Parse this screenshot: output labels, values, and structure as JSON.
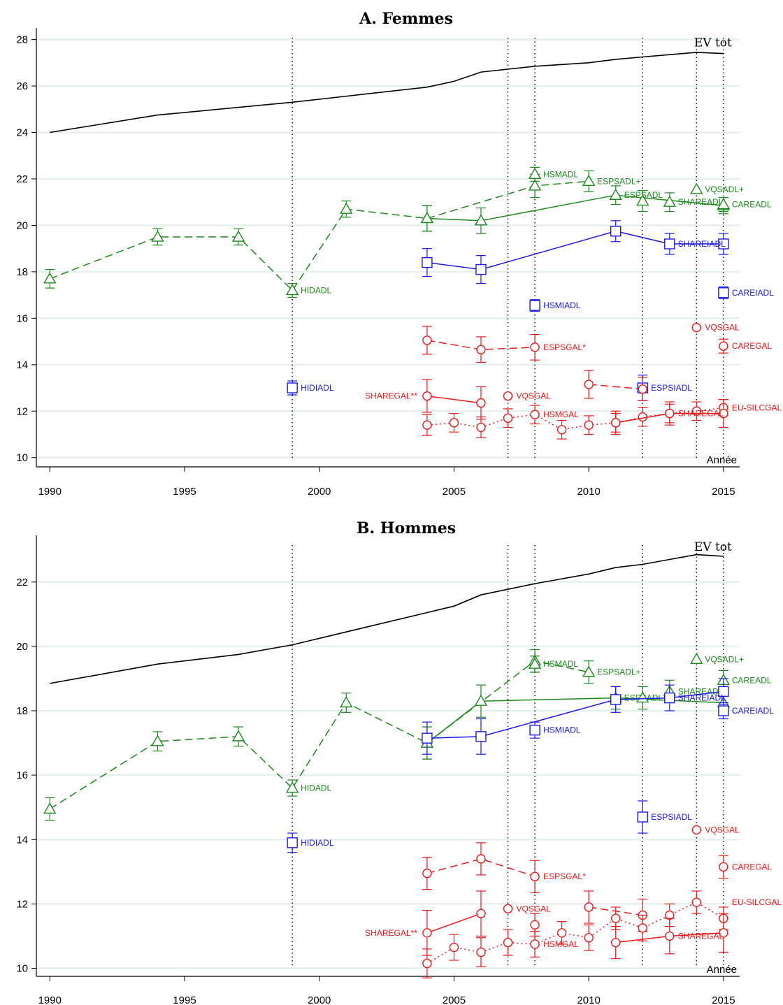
{
  "colors": {
    "green": "#1a8a1a",
    "blue": "#1a1aee",
    "red": "#ee1a1a",
    "black": "#000000",
    "grid": "#e4efef"
  },
  "chart_data": [
    {
      "type": "line",
      "title": "A. Femmes",
      "xlabel": "Année",
      "ylabel": "",
      "xlim": [
        1989.5,
        2015.6
      ],
      "ylim": [
        9.6,
        28.5
      ],
      "xticks": [
        1990,
        1995,
        2000,
        2005,
        2010,
        2015
      ],
      "yticks": [
        10,
        12,
        14,
        16,
        18,
        20,
        22,
        24,
        26,
        28
      ],
      "vlines": [
        1999,
        2007,
        2008,
        2012,
        2014,
        2015
      ],
      "ev_label": "EV tot",
      "ev": {
        "x": [
          1990,
          1994,
          1999,
          2004,
          2005,
          2006,
          2008,
          2010,
          2011,
          2012,
          2013,
          2014,
          2015
        ],
        "y": [
          24.0,
          24.75,
          25.3,
          25.95,
          26.2,
          26.6,
          26.85,
          27.0,
          27.15,
          27.25,
          27.35,
          27.45,
          27.4
        ]
      },
      "series": [
        {
          "name": "HIDADL",
          "color": "green",
          "marker": "triangle",
          "line": "dashed",
          "label_at": 1999,
          "points": [
            [
              1990,
              17.7,
              0.4
            ],
            [
              1994,
              19.5,
              0.35
            ],
            [
              1997,
              19.5,
              0.35
            ],
            [
              1999,
              17.2,
              0.3
            ],
            [
              2001,
              20.7,
              0.35
            ],
            [
              2004,
              20.3,
              0.55
            ],
            [
              2008,
              21.7,
              0.5
            ],
            [
              2010,
              21.9,
              0.45
            ]
          ]
        },
        {
          "name": "HSMADL",
          "color": "green",
          "marker": "triangle",
          "line": "none",
          "label_at": 2008,
          "points": [
            [
              2008,
              22.2,
              0.3
            ]
          ]
        },
        {
          "name": "ESPSADL+",
          "color": "green",
          "marker": "triangle",
          "line": "none",
          "label_at": 2010,
          "points": []
        },
        {
          "name": "ESPSADL",
          "color": "green",
          "marker": "triangle",
          "line": "solid",
          "label_at": 2011,
          "points": [
            [
              2004,
              20.3,
              0.55
            ],
            [
              2006,
              20.2,
              0.55
            ],
            [
              2011,
              21.3,
              0.4
            ],
            [
              2015,
              20.85,
              0.35
            ]
          ]
        },
        {
          "name": "SHAREADL",
          "color": "green",
          "marker": "triangle",
          "line": "none",
          "label_at": 2013,
          "points": [
            [
              2012,
              21.05,
              0.45
            ],
            [
              2013,
              21.0,
              0.4
            ]
          ]
        },
        {
          "name": "VQSADL+",
          "color": "green",
          "marker": "triangle",
          "line": "none",
          "label_at": 2014,
          "points": [
            [
              2014,
              21.55,
              0.1
            ]
          ]
        },
        {
          "name": "CAREADL",
          "color": "green",
          "marker": "triangle",
          "line": "none",
          "label_at": 2015,
          "points": [
            [
              2015,
              20.9,
              0.3
            ]
          ]
        },
        {
          "name": "HIDIADL",
          "color": "blue",
          "marker": "square",
          "line": "none",
          "label_at": 1999,
          "points": [
            [
              1999,
              13.0,
              0.3
            ]
          ]
        },
        {
          "name": "SHAREIADL",
          "color": "blue",
          "marker": "square",
          "line": "solid",
          "label_at": 2013,
          "points": [
            [
              2004,
              18.4,
              0.6
            ],
            [
              2006,
              18.1,
              0.6
            ],
            [
              2011,
              19.75,
              0.45
            ],
            [
              2013,
              19.2,
              0.45
            ],
            [
              2015,
              19.2,
              0.45
            ]
          ]
        },
        {
          "name": "HSMIADL",
          "color": "blue",
          "marker": "square",
          "line": "none",
          "label_at": 2008,
          "points": [
            [
              2008,
              16.55,
              0.25
            ]
          ]
        },
        {
          "name": "CAREIADL",
          "color": "blue",
          "marker": "square",
          "line": "none",
          "label_at": 2015,
          "points": [
            [
              2015,
              17.1,
              0.25
            ]
          ]
        },
        {
          "name": "ESPSIADL",
          "color": "blue",
          "marker": "square",
          "line": "none",
          "label_at": 2012,
          "points": [
            [
              2012,
              13.0,
              0.55
            ]
          ]
        },
        {
          "name": "ESPSGAL*",
          "color": "red",
          "marker": "circle",
          "line": "dashed",
          "label_at": 2008,
          "points": [
            [
              2004,
              15.05,
              0.6
            ],
            [
              2006,
              14.65,
              0.55
            ],
            [
              2008,
              14.75,
              0.55
            ]
          ]
        },
        {
          "name": "ESPSGAL*",
          "color": "red",
          "marker": "circle",
          "line": "dashed",
          "label_at": null,
          "points": [
            [
              2010,
              13.15,
              0.6
            ],
            [
              2012,
              12.95,
              0.5
            ]
          ]
        },
        {
          "name": "VQSGAL",
          "color": "red",
          "marker": "circle",
          "line": "none",
          "label_at": 2014,
          "points": [
            [
              2014,
              15.6,
              0.1
            ]
          ]
        },
        {
          "name": "CAREGAL",
          "color": "red",
          "marker": "circle",
          "line": "none",
          "label_at": 2015,
          "points": [
            [
              2015,
              14.8,
              0.3
            ]
          ]
        },
        {
          "name": "SHAREGAL**",
          "color": "red",
          "marker": "circle",
          "line": "solid",
          "label_at": 2004,
          "label_side": "left",
          "points": [
            [
              2004,
              12.65,
              0.7
            ],
            [
              2006,
              12.35,
              0.7
            ]
          ]
        },
        {
          "name": "VQSGAL",
          "color": "red",
          "marker": "circle",
          "line": "none",
          "label_at": 2007,
          "points": [
            [
              2007,
              12.65,
              0.1
            ]
          ]
        },
        {
          "name": "HSMGAL",
          "color": "red",
          "marker": "circle",
          "line": "dotted",
          "label_at": 2008,
          "points": [
            [
              2004,
              11.4,
              0.45
            ],
            [
              2005,
              11.5,
              0.4
            ],
            [
              2006,
              11.3,
              0.45
            ],
            [
              2007,
              11.7,
              0.4
            ],
            [
              2008,
              11.85,
              0.4
            ],
            [
              2009,
              11.2,
              0.4
            ],
            [
              2010,
              11.4,
              0.4
            ],
            [
              2011,
              11.5,
              0.4
            ],
            [
              2012,
              11.75,
              0.4
            ],
            [
              2013,
              11.9,
              0.4
            ],
            [
              2014,
              12.0,
              0.4
            ],
            [
              2015,
              12.15,
              0.35
            ]
          ]
        },
        {
          "name": "EU-SILCGAL",
          "color": "red",
          "marker": "circle",
          "line": "none",
          "label_at": 2015,
          "points": []
        },
        {
          "name": "SHAREGAL",
          "color": "red",
          "marker": "circle",
          "line": "solid",
          "label_at": 2013,
          "points": [
            [
              2011,
              11.5,
              0.5
            ],
            [
              2013,
              11.9,
              0.5
            ],
            [
              2015,
              11.9,
              0.6
            ]
          ]
        }
      ]
    },
    {
      "type": "line",
      "title": "B. Hommes",
      "xlabel": "Année",
      "ylabel": "",
      "xlim": [
        1989.5,
        2015.6
      ],
      "ylim": [
        9.75,
        23.45
      ],
      "xticks": [
        1990,
        1995,
        2000,
        2005,
        2010,
        2015
      ],
      "yticks": [
        10,
        12,
        14,
        16,
        18,
        20,
        22
      ],
      "vlines": [
        1999,
        2007,
        2008,
        2012,
        2014,
        2015
      ],
      "ev_label": "EV tot",
      "ev": {
        "x": [
          1990,
          1994,
          1997,
          1999,
          2004,
          2005,
          2006,
          2008,
          2010,
          2011,
          2012,
          2013,
          2014,
          2015
        ],
        "y": [
          18.85,
          19.45,
          19.75,
          20.05,
          21.05,
          21.25,
          21.6,
          21.95,
          22.25,
          22.45,
          22.55,
          22.7,
          22.85,
          22.8
        ]
      },
      "series": [
        {
          "name": "HIDADL",
          "color": "green",
          "marker": "triangle",
          "line": "dashed",
          "label_at": 1999,
          "points": [
            [
              1990,
              14.95,
              0.35
            ],
            [
              1994,
              17.05,
              0.3
            ],
            [
              1997,
              17.2,
              0.3
            ],
            [
              1999,
              15.6,
              0.25
            ],
            [
              2001,
              18.25,
              0.3
            ],
            [
              2004,
              17.0,
              0.5
            ],
            [
              2008,
              19.55,
              0.35
            ],
            [
              2010,
              19.2,
              0.35
            ]
          ]
        },
        {
          "name": "HSMADL",
          "color": "green",
          "marker": "triangle",
          "line": "none",
          "label_at": 2008,
          "points": [
            [
              2008,
              19.45,
              0.25
            ]
          ]
        },
        {
          "name": "ESPSADL+",
          "color": "green",
          "marker": "triangle",
          "line": "none",
          "label_at": 2010,
          "points": []
        },
        {
          "name": "ESPSADL",
          "color": "green",
          "marker": "triangle",
          "line": "solid",
          "label_at": 2011,
          "points": [
            [
              2004,
              17.0,
              0.5
            ],
            [
              2006,
              18.3,
              0.5
            ],
            [
              2011,
              18.4,
              0.35
            ],
            [
              2015,
              18.25,
              0.3
            ]
          ]
        },
        {
          "name": "SHAREADL",
          "color": "green",
          "marker": "triangle",
          "line": "none",
          "label_at": 2013,
          "points": [
            [
              2012,
              18.4,
              0.35
            ],
            [
              2013,
              18.6,
              0.35
            ]
          ]
        },
        {
          "name": "VQSADL+",
          "color": "green",
          "marker": "triangle",
          "line": "none",
          "label_at": 2014,
          "points": [
            [
              2014,
              19.6,
              0.1
            ]
          ]
        },
        {
          "name": "CAREADL",
          "color": "green",
          "marker": "triangle",
          "line": "none",
          "label_at": 2015,
          "points": [
            [
              2015,
              18.95,
              0.3
            ]
          ]
        },
        {
          "name": "HIDIADL",
          "color": "blue",
          "marker": "square",
          "line": "none",
          "label_at": 1999,
          "points": [
            [
              1999,
              13.9,
              0.3
            ]
          ]
        },
        {
          "name": "SHAREIADL",
          "color": "blue",
          "marker": "square",
          "line": "solid",
          "label_at": 2013,
          "points": [
            [
              2004,
              17.15,
              0.5
            ],
            [
              2006,
              17.2,
              0.55
            ],
            [
              2011,
              18.35,
              0.4
            ],
            [
              2013,
              18.4,
              0.4
            ],
            [
              2015,
              18.6,
              0.4
            ]
          ]
        },
        {
          "name": "HSMIADL",
          "color": "blue",
          "marker": "square",
          "line": "none",
          "label_at": 2008,
          "points": [
            [
              2008,
              17.4,
              0.25
            ]
          ]
        },
        {
          "name": "CAREIADL",
          "color": "blue",
          "marker": "square",
          "line": "none",
          "label_at": 2015,
          "points": [
            [
              2015,
              18.0,
              0.25
            ]
          ]
        },
        {
          "name": "ESPSIADL",
          "color": "blue",
          "marker": "square",
          "line": "none",
          "label_at": 2012,
          "points": [
            [
              2012,
              14.7,
              0.5
            ]
          ]
        },
        {
          "name": "ESPSGAL*",
          "color": "red",
          "marker": "circle",
          "line": "dashed",
          "label_at": 2008,
          "points": [
            [
              2004,
              12.95,
              0.5
            ],
            [
              2006,
              13.4,
              0.5
            ],
            [
              2008,
              12.85,
              0.5
            ]
          ]
        },
        {
          "name": "ESPSGAL*",
          "color": "red",
          "marker": "circle",
          "line": "dashed",
          "label_at": null,
          "points": [
            [
              2010,
              11.9,
              0.5
            ],
            [
              2012,
              11.65,
              0.5
            ]
          ]
        },
        {
          "name": "VQSGAL",
          "color": "red",
          "marker": "circle",
          "line": "none",
          "label_at": 2014,
          "points": [
            [
              2014,
              14.3,
              0.1
            ]
          ]
        },
        {
          "name": "CAREGAL",
          "color": "red",
          "marker": "circle",
          "line": "none",
          "label_at": 2015,
          "points": [
            [
              2015,
              13.15,
              0.35
            ]
          ]
        },
        {
          "name": "SHAREGAL**",
          "color": "red",
          "marker": "circle",
          "line": "solid",
          "label_at": 2004,
          "label_side": "left",
          "points": [
            [
              2004,
              11.1,
              0.7
            ],
            [
              2006,
              11.7,
              0.7
            ]
          ]
        },
        {
          "name": "VQSGAL",
          "color": "red",
          "marker": "circle",
          "line": "none",
          "label_at": 2007,
          "points": [
            [
              2007,
              11.85,
              0.1
            ]
          ]
        },
        {
          "name": "HSMGAL",
          "color": "red",
          "marker": "circle",
          "line": "dotted",
          "label_at": 2008,
          "points": [
            [
              2004,
              10.15,
              0.45
            ],
            [
              2005,
              10.65,
              0.4
            ],
            [
              2006,
              10.5,
              0.45
            ],
            [
              2007,
              10.8,
              0.4
            ],
            [
              2008,
              10.75,
              0.4
            ],
            [
              2009,
              11.1,
              0.35
            ],
            [
              2010,
              10.95,
              0.4
            ],
            [
              2011,
              11.55,
              0.35
            ],
            [
              2012,
              11.25,
              0.4
            ],
            [
              2013,
              11.65,
              0.35
            ],
            [
              2014,
              12.05,
              0.35
            ],
            [
              2015,
              11.55,
              0.35
            ]
          ]
        },
        {
          "name": "HSMGAL",
          "color": "red",
          "marker": "circle",
          "line": "none",
          "label_at": null,
          "points": [
            [
              2008,
              11.35,
              0.35
            ]
          ]
        },
        {
          "name": "EU-SILCGAL",
          "color": "red",
          "marker": "circle",
          "line": "none",
          "label_at": 2015,
          "points": []
        },
        {
          "name": "SHAREGAL",
          "color": "red",
          "marker": "circle",
          "line": "solid",
          "label_at": 2013,
          "points": [
            [
              2011,
              10.8,
              0.5
            ],
            [
              2013,
              11.0,
              0.55
            ],
            [
              2015,
              11.1,
              0.6
            ]
          ]
        }
      ]
    }
  ]
}
